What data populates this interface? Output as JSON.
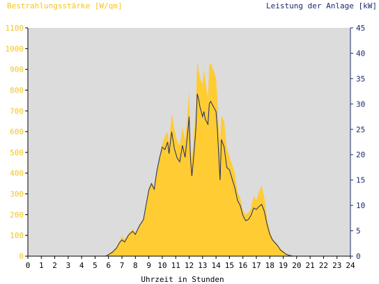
{
  "colors": {
    "irradiance": "#ffcc33",
    "power": "#1a2a6c",
    "plot_bg": "#dcdcdc",
    "y1_axis": "#f5c518",
    "y2_axis": "#1a2a6c"
  },
  "chart_data": {
    "type": "area",
    "title": "",
    "ylabel_left": "Bestrahlungsstärke [W/qm]",
    "ylabel_right": "Leistung der Anlage [kW]",
    "xlabel": "Uhrzeit in Stunden",
    "xlim": [
      0,
      24
    ],
    "ylim_left": [
      0,
      1100
    ],
    "ylim_right": [
      0,
      45
    ],
    "grid": false,
    "x_ticks": [
      "0",
      "1",
      "2",
      "3",
      "4",
      "5",
      "6",
      "7",
      "8",
      "9",
      "10",
      "11",
      "12",
      "13",
      "14",
      "15",
      "16",
      "17",
      "18",
      "19",
      "20",
      "21",
      "22",
      "23",
      "24"
    ],
    "y_left_ticks": [
      "0",
      "100",
      "200",
      "300",
      "400",
      "500",
      "600",
      "700",
      "800",
      "900",
      "1000",
      "1100"
    ],
    "y_right_ticks": [
      "0",
      "5",
      "10",
      "15",
      "20",
      "25",
      "30",
      "35",
      "40",
      "45"
    ],
    "series": [
      {
        "name": "Bestrahlungsstärke",
        "axis": "left",
        "style": "filled-area",
        "points": [
          [
            0,
            0
          ],
          [
            5.7,
            0
          ],
          [
            6.0,
            10
          ],
          [
            6.3,
            25
          ],
          [
            6.6,
            45
          ],
          [
            6.8,
            70
          ],
          [
            7.0,
            95
          ],
          [
            7.2,
            80
          ],
          [
            7.5,
            110
          ],
          [
            7.8,
            130
          ],
          [
            8.0,
            110
          ],
          [
            8.3,
            150
          ],
          [
            8.6,
            180
          ],
          [
            8.8,
            260
          ],
          [
            9.0,
            330
          ],
          [
            9.2,
            360
          ],
          [
            9.4,
            330
          ],
          [
            9.6,
            420
          ],
          [
            9.8,
            480
          ],
          [
            10.0,
            540
          ],
          [
            10.2,
            580
          ],
          [
            10.4,
            600
          ],
          [
            10.5,
            540
          ],
          [
            10.7,
            690
          ],
          [
            10.9,
            610
          ],
          [
            11.1,
            560
          ],
          [
            11.3,
            530
          ],
          [
            11.5,
            620
          ],
          [
            11.7,
            560
          ],
          [
            11.9,
            700
          ],
          [
            12.0,
            800
          ],
          [
            12.1,
            520
          ],
          [
            12.2,
            470
          ],
          [
            12.3,
            540
          ],
          [
            12.5,
            720
          ],
          [
            12.6,
            940
          ],
          [
            12.7,
            900
          ],
          [
            12.8,
            860
          ],
          [
            13.0,
            830
          ],
          [
            13.1,
            900
          ],
          [
            13.2,
            850
          ],
          [
            13.4,
            760
          ],
          [
            13.5,
            920
          ],
          [
            13.6,
            930
          ],
          [
            13.8,
            900
          ],
          [
            14.0,
            860
          ],
          [
            14.1,
            760
          ],
          [
            14.2,
            620
          ],
          [
            14.3,
            550
          ],
          [
            14.4,
            680
          ],
          [
            14.6,
            650
          ],
          [
            14.8,
            520
          ],
          [
            15.0,
            480
          ],
          [
            15.2,
            440
          ],
          [
            15.4,
            400
          ],
          [
            15.6,
            310
          ],
          [
            15.8,
            280
          ],
          [
            16.0,
            220
          ],
          [
            16.2,
            200
          ],
          [
            16.4,
            210
          ],
          [
            16.6,
            230
          ],
          [
            16.8,
            290
          ],
          [
            17.0,
            270
          ],
          [
            17.2,
            310
          ],
          [
            17.4,
            340
          ],
          [
            17.6,
            280
          ],
          [
            17.8,
            180
          ],
          [
            18.0,
            120
          ],
          [
            18.2,
            85
          ],
          [
            18.4,
            70
          ],
          [
            18.6,
            55
          ],
          [
            18.8,
            35
          ],
          [
            19.0,
            25
          ],
          [
            19.2,
            15
          ],
          [
            19.4,
            8
          ],
          [
            19.6,
            3
          ],
          [
            19.8,
            0
          ],
          [
            24,
            0
          ]
        ]
      },
      {
        "name": "Leistung der Anlage",
        "axis": "right",
        "style": "line",
        "points": [
          [
            0,
            0
          ],
          [
            5.8,
            0
          ],
          [
            6.0,
            0.3
          ],
          [
            6.3,
            0.8
          ],
          [
            6.6,
            1.6
          ],
          [
            6.8,
            2.6
          ],
          [
            7.0,
            3.2
          ],
          [
            7.2,
            2.8
          ],
          [
            7.5,
            4.2
          ],
          [
            7.8,
            4.9
          ],
          [
            8.0,
            4.3
          ],
          [
            8.3,
            6.0
          ],
          [
            8.6,
            7.2
          ],
          [
            8.8,
            10.2
          ],
          [
            9.0,
            13.0
          ],
          [
            9.2,
            14.3
          ],
          [
            9.4,
            13.2
          ],
          [
            9.6,
            16.8
          ],
          [
            9.8,
            19.4
          ],
          [
            10.0,
            21.5
          ],
          [
            10.2,
            21.0
          ],
          [
            10.4,
            22.5
          ],
          [
            10.5,
            20.2
          ],
          [
            10.7,
            24.5
          ],
          [
            10.9,
            21.2
          ],
          [
            11.1,
            19.4
          ],
          [
            11.3,
            18.6
          ],
          [
            11.5,
            21.8
          ],
          [
            11.7,
            19.5
          ],
          [
            11.9,
            24.5
          ],
          [
            12.0,
            27.5
          ],
          [
            12.1,
            19.2
          ],
          [
            12.2,
            15.8
          ],
          [
            12.3,
            18.5
          ],
          [
            12.5,
            25.0
          ],
          [
            12.6,
            32.0
          ],
          [
            12.7,
            31.0
          ],
          [
            12.8,
            29.5
          ],
          [
            13.0,
            27.5
          ],
          [
            13.1,
            28.5
          ],
          [
            13.2,
            27.0
          ],
          [
            13.4,
            26.0
          ],
          [
            13.5,
            30.0
          ],
          [
            13.6,
            30.5
          ],
          [
            13.8,
            29.5
          ],
          [
            14.0,
            28.5
          ],
          [
            14.1,
            25.0
          ],
          [
            14.2,
            20.0
          ],
          [
            14.3,
            15.0
          ],
          [
            14.4,
            23.0
          ],
          [
            14.6,
            21.5
          ],
          [
            14.8,
            17.5
          ],
          [
            15.0,
            17.0
          ],
          [
            15.2,
            15.2
          ],
          [
            15.4,
            13.5
          ],
          [
            15.6,
            11.0
          ],
          [
            15.8,
            10.0
          ],
          [
            16.0,
            8.0
          ],
          [
            16.2,
            7.0
          ],
          [
            16.4,
            7.2
          ],
          [
            16.6,
            8.0
          ],
          [
            16.8,
            9.5
          ],
          [
            17.0,
            9.2
          ],
          [
            17.2,
            9.8
          ],
          [
            17.4,
            10.2
          ],
          [
            17.6,
            8.8
          ],
          [
            17.8,
            6.2
          ],
          [
            18.0,
            4.3
          ],
          [
            18.2,
            3.2
          ],
          [
            18.4,
            2.6
          ],
          [
            18.6,
            2.0
          ],
          [
            18.8,
            1.2
          ],
          [
            19.0,
            0.8
          ],
          [
            19.2,
            0.4
          ],
          [
            19.4,
            0.2
          ],
          [
            19.6,
            0.05
          ],
          [
            19.8,
            0
          ],
          [
            24,
            0
          ]
        ]
      }
    ]
  }
}
